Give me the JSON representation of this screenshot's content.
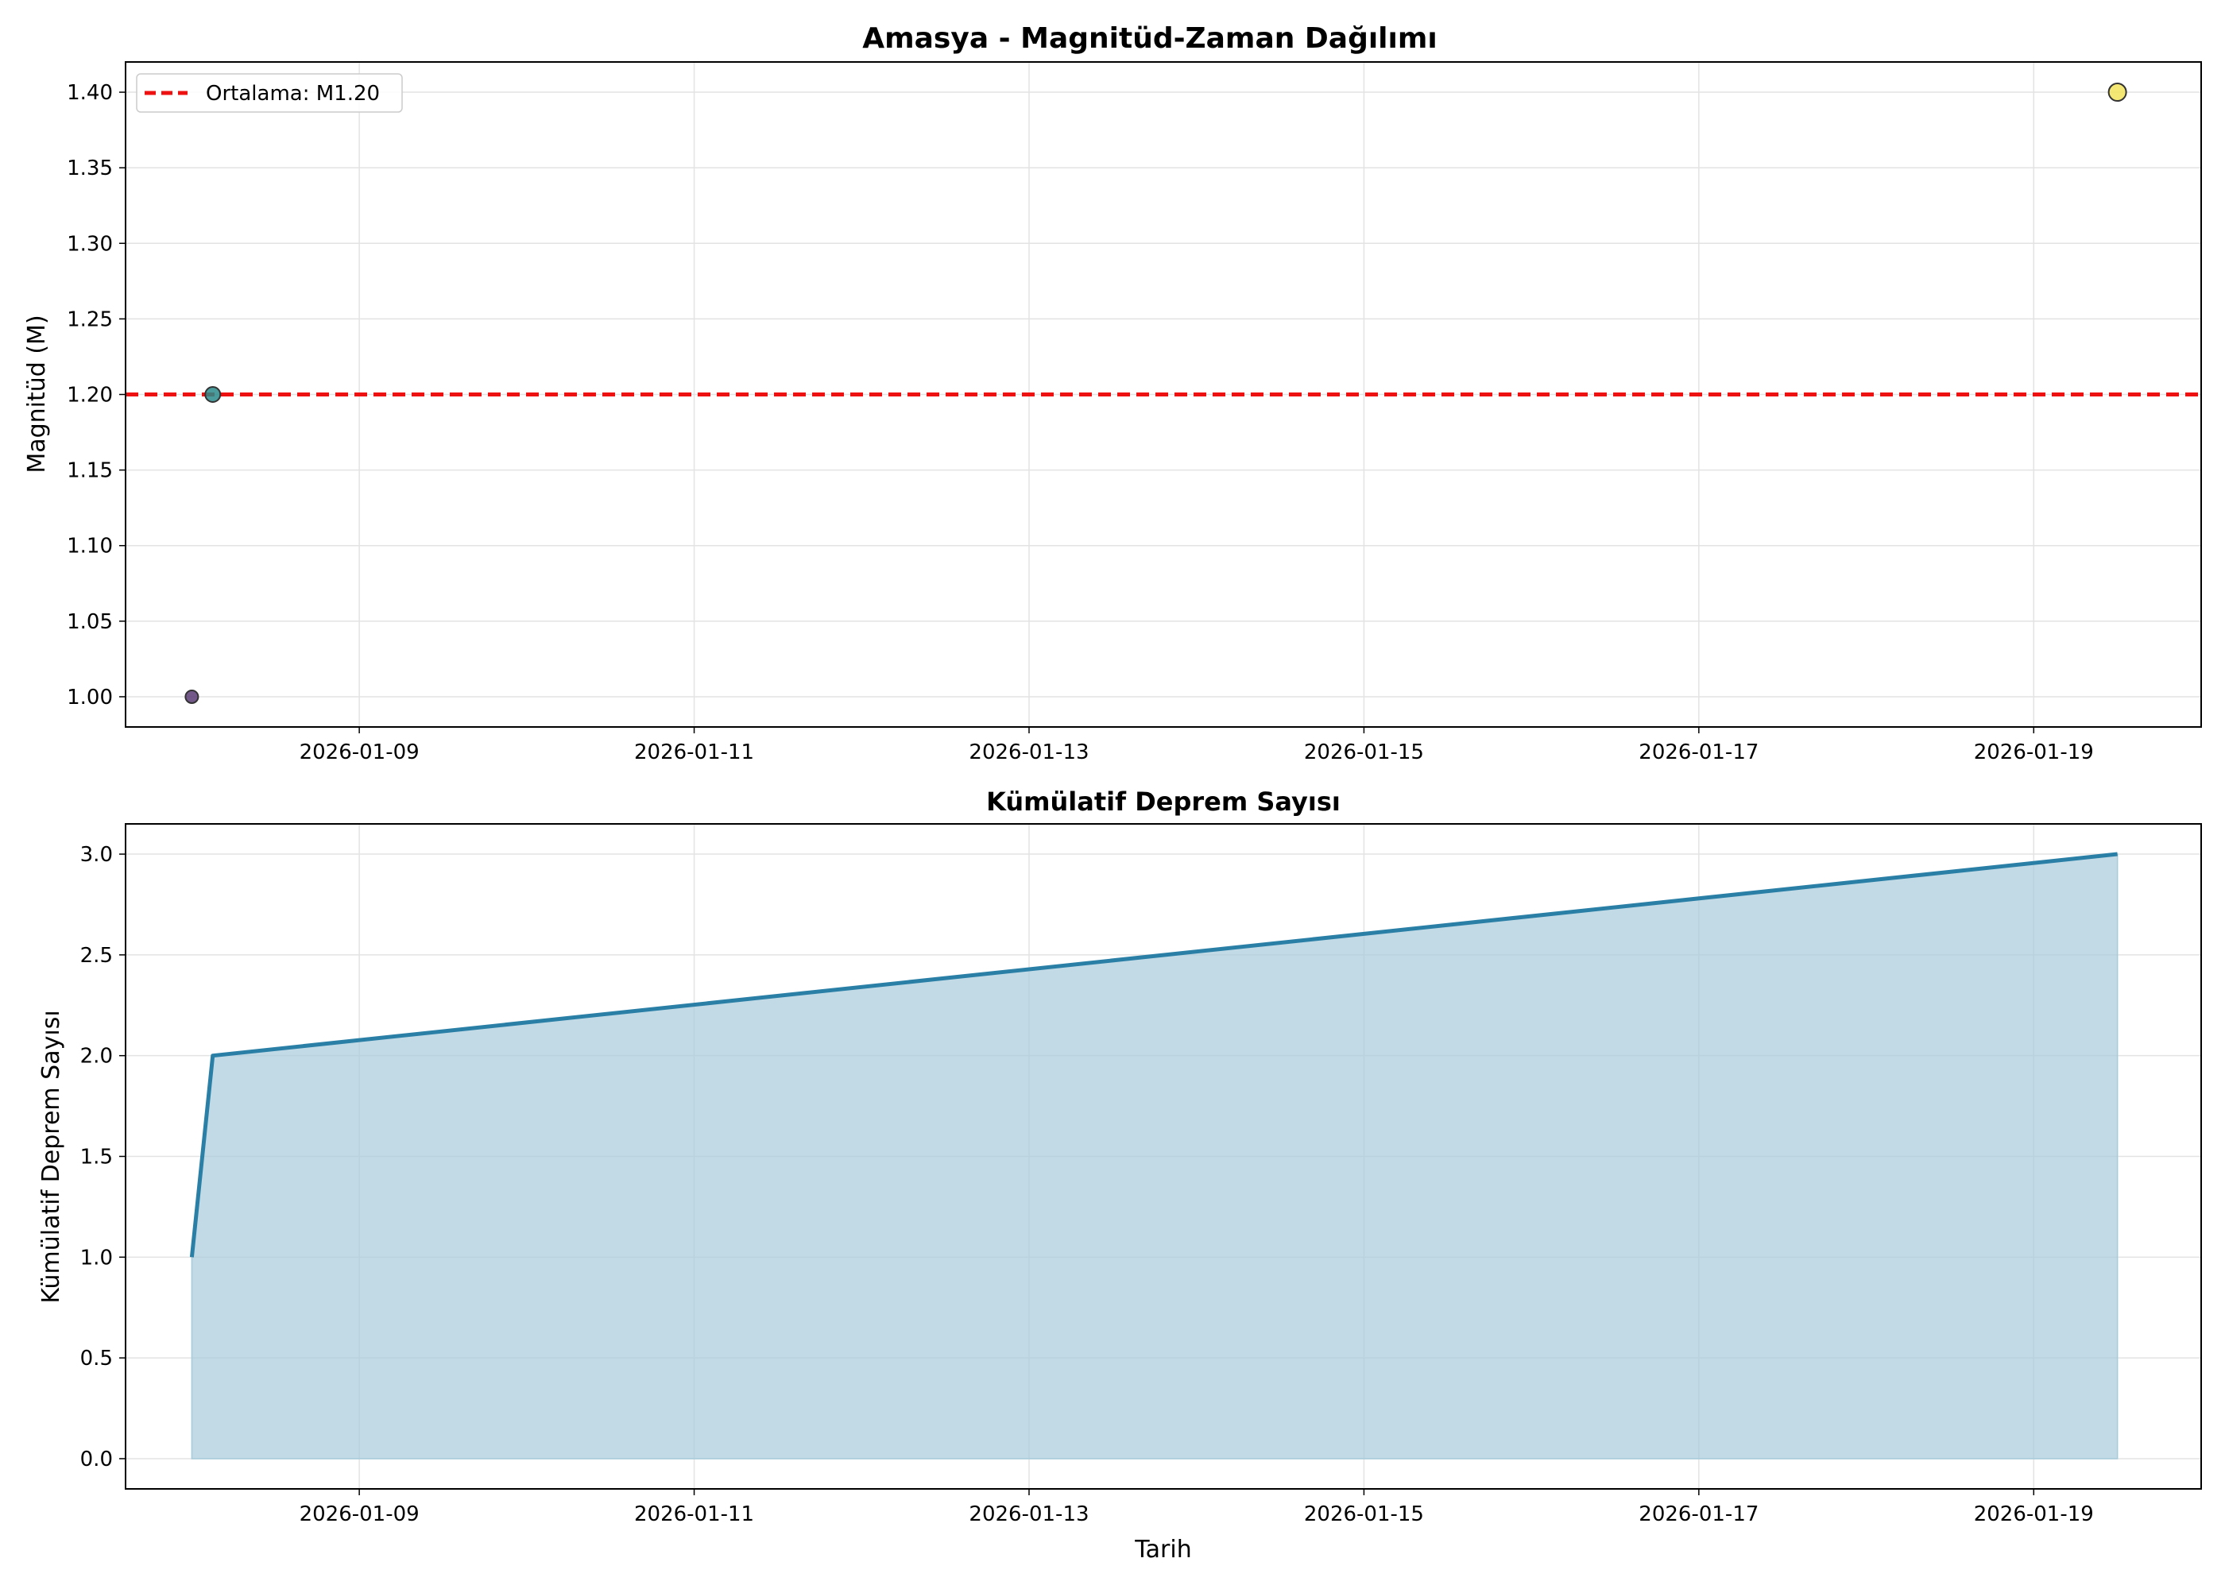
{
  "chart_data": [
    {
      "type": "scatter",
      "title": "Amasya - Magnitüd-Zaman Dağılımı",
      "xlabel": "",
      "ylabel": "Magnitüd (M)",
      "x_type": "date",
      "xlim": [
        "2026-01-07T14:30",
        "2026-01-20T00:00"
      ],
      "x_tick_labels": [
        "2026-01-09",
        "2026-01-11",
        "2026-01-13",
        "2026-01-15",
        "2026-01-17",
        "2026-01-19"
      ],
      "ylim": [
        0.98,
        1.42
      ],
      "y_ticks": [
        1.0,
        1.05,
        1.1,
        1.15,
        1.2,
        1.25,
        1.3,
        1.35,
        1.4
      ],
      "y_tick_labels": [
        "1.00",
        "1.05",
        "1.10",
        "1.15",
        "1.20",
        "1.25",
        "1.30",
        "1.35",
        "1.40"
      ],
      "points": [
        {
          "date": "2026-01-08T00:00",
          "value": 1.0,
          "color": "#5b3c76"
        },
        {
          "date": "2026-01-08T03:00",
          "value": 1.2,
          "color": "#2a8a8a"
        },
        {
          "date": "2026-01-19T12:00",
          "value": 1.4,
          "color": "#f2e35a"
        }
      ],
      "reference_line": {
        "value": 1.2,
        "label": "Ortalama: M1.20",
        "color": "#ee1111",
        "style": "dashed"
      },
      "legend": {
        "position": "top-left",
        "entries": [
          "Ortalama: M1.20"
        ]
      },
      "grid": true
    },
    {
      "type": "area",
      "title": "Kümülatif Deprem Sayısı",
      "xlabel": "Tarih",
      "ylabel": "Kümülatif Deprem Sayısı",
      "x_type": "date",
      "xlim": [
        "2026-01-07T14:30",
        "2026-01-20T00:00"
      ],
      "x_tick_labels": [
        "2026-01-09",
        "2026-01-11",
        "2026-01-13",
        "2026-01-15",
        "2026-01-17",
        "2026-01-19"
      ],
      "ylim": [
        -0.15,
        3.15
      ],
      "y_ticks": [
        0,
        0.5,
        1,
        1.5,
        2,
        2.5,
        3
      ],
      "y_tick_labels": [
        "0.0",
        "0.5",
        "1.0",
        "1.5",
        "2.0",
        "2.5",
        "3.0"
      ],
      "x": [
        "2026-01-08T00:00",
        "2026-01-08T03:00",
        "2026-01-19T12:00"
      ],
      "values": [
        1,
        2,
        3
      ],
      "line_color": "#2a7fa6",
      "fill_color": "#a7cbdb",
      "grid": true
    }
  ]
}
